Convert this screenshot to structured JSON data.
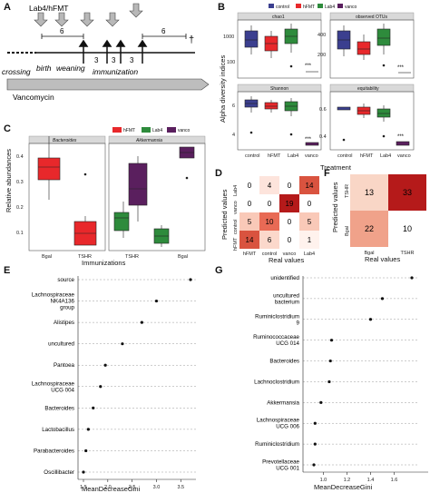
{
  "panels": {
    "A": "A",
    "B": "B",
    "C": "C",
    "D": "D",
    "E": "E",
    "F": "F",
    "G": "G"
  },
  "panelA": {
    "top_label": "Lab4/hFMT",
    "labels": [
      "crossing",
      "birth",
      "weaning",
      "immunization"
    ],
    "numbers": [
      "6",
      "3",
      "3",
      "3",
      "6"
    ],
    "dagger": "†",
    "vanco": "Vancomycin"
  },
  "panelB": {
    "legend": [
      {
        "name": "control",
        "color": "#3b3f8f"
      },
      {
        "name": "hFMT",
        "color": "#e8282b"
      },
      {
        "name": "Lab4",
        "color": "#2e8b3c"
      },
      {
        "name": "vanco",
        "color": "#5a1f5e"
      }
    ],
    "ylabel": "Alpha diversity indices",
    "xlabel": "Treatment",
    "facets": [
      "chao1",
      "observed OTUs",
      "Shannon",
      "equitability"
    ],
    "categories": [
      "control",
      "hFMT",
      "Lab4",
      "vanco"
    ],
    "chao1_ticks": [
      "1000",
      "100"
    ],
    "otu_ticks": [
      "400",
      "200"
    ],
    "shannon_ticks": [
      "6",
      "4"
    ],
    "equit_ticks": [
      "0.6",
      "0.4"
    ],
    "stars": "***"
  },
  "panelC": {
    "legend": [
      {
        "name": "hFMT",
        "color": "#e8282b"
      },
      {
        "name": "Lab4",
        "color": "#2e8b3c"
      },
      {
        "name": "vanco",
        "color": "#5a1f5e"
      }
    ],
    "facets": [
      "Bacteroides",
      "Akkermansia"
    ],
    "ylabel": "Relative abundances",
    "xlabel": "Immunizations",
    "yticks": [
      "0.4",
      "0.3",
      "0.2",
      "0.1"
    ],
    "xticks_left": [
      "Bgal",
      "TSHR"
    ],
    "xticks_right": [
      "TSHR",
      "Bgal"
    ]
  },
  "panelD": {
    "rows": [
      "Lab4",
      "vanco",
      "control",
      "hFMT"
    ],
    "cols": [
      "hFMT",
      "control",
      "vanco",
      "Lab4"
    ],
    "matrix": [
      [
        0,
        4,
        0,
        14
      ],
      [
        0,
        0,
        19,
        0
      ],
      [
        5,
        10,
        0,
        5
      ],
      [
        14,
        6,
        0,
        1
      ]
    ],
    "ylabel": "Predicted values",
    "xlabel": "Real values"
  },
  "panelF": {
    "rows": [
      "TSHR",
      "Bgal"
    ],
    "cols": [
      "Bgal",
      "TSHR"
    ],
    "matrix": [
      [
        13,
        33
      ],
      [
        22,
        10
      ]
    ],
    "ylabel": "Predicted values",
    "xlabel": "Real values"
  },
  "panelE": {
    "labels": [
      "source",
      "Lachnospiraceae NK4A136 group",
      "Alistipes",
      "uncultured",
      "Pantoea",
      "Lachnospiraceae UCG 004",
      "Bacteroides",
      "Lactobacillus",
      "Parabacteroides",
      "Oscillibacter"
    ],
    "values": [
      3.7,
      3.0,
      2.7,
      2.3,
      1.95,
      1.85,
      1.7,
      1.6,
      1.55,
      1.5
    ],
    "xticks": [
      "1.5",
      "2.0",
      "2.5",
      "3.0",
      "3.5"
    ],
    "xlabel": "MeanDecreaseGini"
  },
  "panelG": {
    "labels": [
      "unidentified",
      "uncultured bacterium",
      "Ruminiclostridium 9",
      "Ruminococcaceae UCG 014",
      "Bacteroides",
      "Lachnoclostridium",
      "Akkermansia",
      "Lachnospiraceae UCG 006",
      "Ruminiclostridium",
      "Prevotellaceae UCG 001"
    ],
    "values": [
      1.75,
      1.5,
      1.4,
      1.07,
      1.06,
      1.05,
      0.98,
      0.93,
      0.93,
      0.92
    ],
    "xticks": [
      "1.0",
      "1.2",
      "1.4",
      "1.6"
    ],
    "xlabel": "MeanDecreaseGini"
  }
}
